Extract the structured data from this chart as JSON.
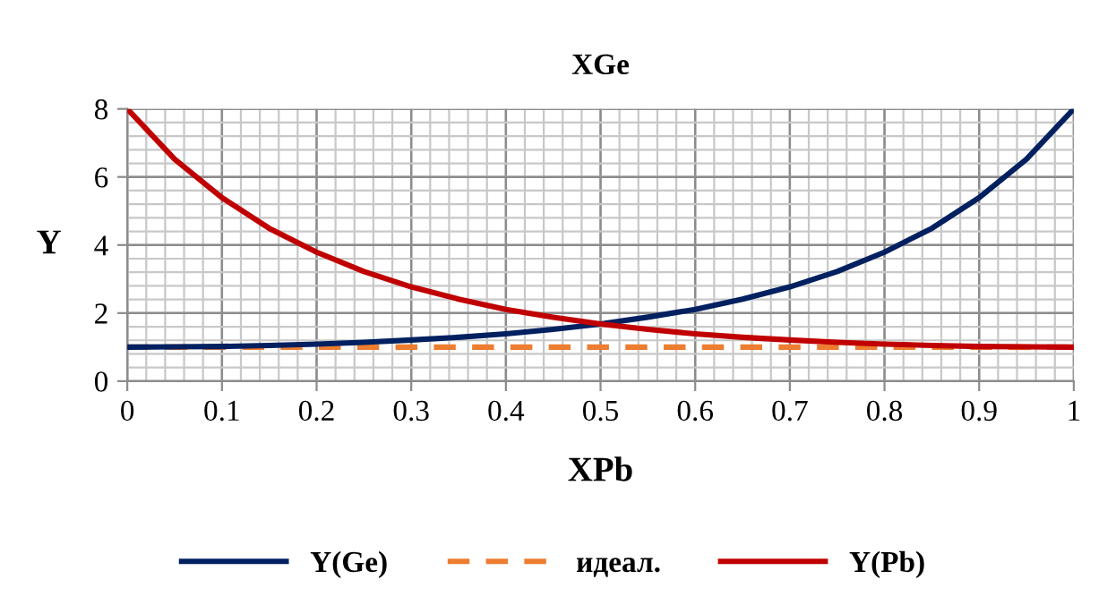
{
  "chart_data": {
    "type": "line",
    "title": "XGe",
    "xlabel": "XPb",
    "ylabel": "Y",
    "x": [
      0,
      0.05,
      0.1,
      0.15,
      0.2,
      0.25,
      0.3,
      0.35,
      0.4,
      0.45,
      0.5,
      0.55,
      0.6,
      0.65,
      0.7,
      0.75,
      0.8,
      0.85,
      0.9,
      0.95,
      1
    ],
    "series": [
      {
        "name": "Y(Ge)",
        "color": "#002060",
        "values": [
          1,
          1.01,
          1.02,
          1.05,
          1.09,
          1.14,
          1.21,
          1.29,
          1.39,
          1.52,
          1.68,
          1.88,
          2.11,
          2.41,
          2.77,
          3.22,
          3.79,
          4.49,
          5.39,
          6.52,
          8
        ]
      },
      {
        "name": "идеал.",
        "color": "#ed7d31",
        "line_style": "dashed",
        "x": [
          0,
          1
        ],
        "values": [
          1,
          1
        ]
      },
      {
        "name": "Y(Pb)",
        "color": "#c00000",
        "values": [
          8,
          6.52,
          5.39,
          4.49,
          3.79,
          3.22,
          2.77,
          2.41,
          2.11,
          1.88,
          1.68,
          1.52,
          1.39,
          1.29,
          1.21,
          1.14,
          1.09,
          1.05,
          1.02,
          1.01,
          1
        ]
      }
    ],
    "xlim": [
      0,
      1
    ],
    "xticks": [
      0,
      0.1,
      0.2,
      0.3,
      0.4,
      0.5,
      0.6,
      0.7,
      0.8,
      0.9,
      1
    ],
    "ylim": [
      0,
      8
    ],
    "yticks": [
      0,
      2,
      4,
      6,
      8
    ],
    "grid": true,
    "legend": "bottom",
    "marker": "none",
    "line_style": "solid"
  }
}
